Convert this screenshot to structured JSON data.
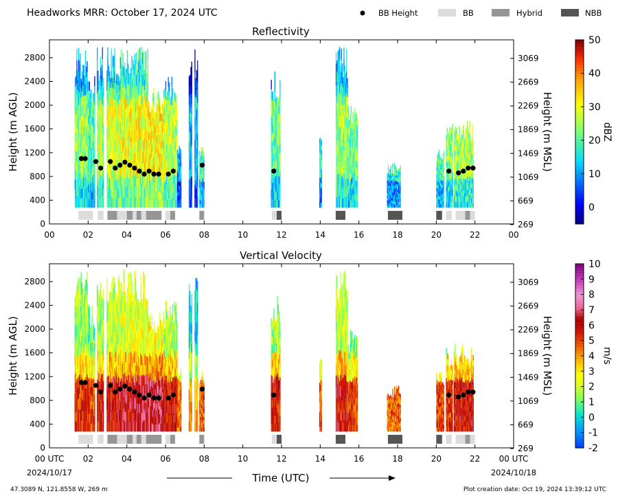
{
  "header": {
    "title": "Headworks MRR:  October 17, 2024 UTC",
    "legend": [
      {
        "label": "BB Height",
        "symbol": "dot",
        "color": "#000000"
      },
      {
        "label": "BB",
        "symbol": "box",
        "color": "#dcdcdc"
      },
      {
        "label": "Hybrid",
        "symbol": "box",
        "color": "#969696"
      },
      {
        "label": "NBB",
        "symbol": "box",
        "color": "#555555"
      }
    ]
  },
  "footer": {
    "location": "47.3089 N, 121.8558 W, 269 m",
    "creation": "Plot creation date: Oct 19, 2024 13:39:12 UTC",
    "xlabel": "Time (UTC)",
    "start_date": "2024/10/17",
    "end_date": "2024/10/18"
  },
  "chart_data": [
    {
      "type": "heatmap",
      "title": "Reflectivity",
      "ylabel": "Height (m AGL)",
      "ylabel_right": "Height (m MSL)",
      "colorbar_label": "dBZ",
      "xlim": [
        0,
        24
      ],
      "ylim": [
        0,
        3100
      ],
      "x_ticks": [
        "00",
        "02",
        "04",
        "06",
        "08",
        "10",
        "12",
        "14",
        "16",
        "18",
        "20",
        "22",
        "00"
      ],
      "y_ticks": [
        0,
        400,
        800,
        1200,
        1600,
        2000,
        2400,
        2800
      ],
      "y_ticks_right": [
        "269",
        "669",
        "1069",
        "1469",
        "1869",
        "2269",
        "2669",
        "3069"
      ],
      "colorbar_ticks": [
        "0",
        "10",
        "20",
        "30",
        "40",
        "50"
      ],
      "colorbar_range": [
        -5,
        50
      ]
    },
    {
      "type": "heatmap",
      "title": "Vertical Velocity",
      "ylabel": "Height (m AGL)",
      "ylabel_right": "Height (m MSL)",
      "colorbar_label": "m/s",
      "xlim": [
        0,
        24
      ],
      "ylim": [
        0,
        3100
      ],
      "x_ticks": [
        "00 UTC",
        "02",
        "04",
        "06",
        "08",
        "10",
        "12",
        "14",
        "16",
        "18",
        "20",
        "22",
        "00 UTC"
      ],
      "y_ticks": [
        0,
        400,
        800,
        1200,
        1600,
        2000,
        2400,
        2800
      ],
      "y_ticks_right": [
        "269",
        "669",
        "1069",
        "1469",
        "1869",
        "2269",
        "2669",
        "3069"
      ],
      "colorbar_ticks": [
        "-2",
        "-1",
        "0",
        "1",
        "2",
        "3",
        "4",
        "5",
        "6",
        "7",
        "8",
        "9",
        "10"
      ],
      "colorbar_range": [
        -2,
        10
      ]
    }
  ],
  "bb_height": [
    {
      "t": 1.65,
      "h": 1100
    },
    {
      "t": 1.85,
      "h": 1100
    },
    {
      "t": 2.4,
      "h": 1050
    },
    {
      "t": 2.65,
      "h": 940
    },
    {
      "t": 3.15,
      "h": 1050
    },
    {
      "t": 3.4,
      "h": 940
    },
    {
      "t": 3.65,
      "h": 990
    },
    {
      "t": 3.9,
      "h": 1040
    },
    {
      "t": 4.15,
      "h": 990
    },
    {
      "t": 4.4,
      "h": 940
    },
    {
      "t": 4.65,
      "h": 890
    },
    {
      "t": 4.9,
      "h": 840
    },
    {
      "t": 5.15,
      "h": 890
    },
    {
      "t": 5.4,
      "h": 840
    },
    {
      "t": 5.65,
      "h": 840
    },
    {
      "t": 6.15,
      "h": 840
    },
    {
      "t": 6.4,
      "h": 890
    },
    {
      "t": 7.9,
      "h": 990
    },
    {
      "t": 11.6,
      "h": 890
    },
    {
      "t": 20.65,
      "h": 890
    },
    {
      "t": 21.15,
      "h": 860
    },
    {
      "t": 21.4,
      "h": 890
    },
    {
      "t": 21.65,
      "h": 940
    },
    {
      "t": 21.9,
      "h": 940
    }
  ],
  "bb_type": [
    {
      "start": 1.5,
      "end": 2.25,
      "kind": "BB"
    },
    {
      "start": 2.5,
      "end": 2.8,
      "kind": "BB"
    },
    {
      "start": 3.0,
      "end": 3.5,
      "kind": "Hybrid"
    },
    {
      "start": 3.5,
      "end": 4.0,
      "kind": "BB"
    },
    {
      "start": 4.0,
      "end": 4.3,
      "kind": "Hybrid"
    },
    {
      "start": 4.3,
      "end": 4.5,
      "kind": "BB"
    },
    {
      "start": 4.5,
      "end": 4.75,
      "kind": "Hybrid"
    },
    {
      "start": 4.75,
      "end": 5.0,
      "kind": "BB"
    },
    {
      "start": 5.0,
      "end": 5.8,
      "kind": "Hybrid"
    },
    {
      "start": 6.0,
      "end": 6.25,
      "kind": "BB"
    },
    {
      "start": 6.25,
      "end": 6.5,
      "kind": "Hybrid"
    },
    {
      "start": 7.75,
      "end": 8.0,
      "kind": "Hybrid"
    },
    {
      "start": 11.5,
      "end": 11.75,
      "kind": "BB"
    },
    {
      "start": 11.75,
      "end": 12.0,
      "kind": "NBB"
    },
    {
      "start": 14.8,
      "end": 15.3,
      "kind": "NBB"
    },
    {
      "start": 17.5,
      "end": 18.25,
      "kind": "NBB"
    },
    {
      "start": 20.0,
      "end": 20.3,
      "kind": "NBB"
    },
    {
      "start": 20.5,
      "end": 20.8,
      "kind": "BB"
    },
    {
      "start": 21.0,
      "end": 21.5,
      "kind": "BB"
    },
    {
      "start": 21.5,
      "end": 21.75,
      "kind": "Hybrid"
    },
    {
      "start": 21.75,
      "end": 22.0,
      "kind": "BB"
    }
  ],
  "precip_columns": [
    {
      "start": 1.3,
      "end": 2.0,
      "top": 3000,
      "refl": 16,
      "vel": 2.2
    },
    {
      "start": 2.0,
      "end": 2.35,
      "top": 2500,
      "refl": 12,
      "vel": 1.8
    },
    {
      "start": 2.45,
      "end": 2.8,
      "top": 3000,
      "refl": 18,
      "vel": 2.5
    },
    {
      "start": 2.95,
      "end": 3.6,
      "top": 3000,
      "refl": 20,
      "vel": 2.8
    },
    {
      "start": 3.6,
      "end": 4.3,
      "top": 3000,
      "refl": 22,
      "vel": 3.0
    },
    {
      "start": 4.3,
      "end": 5.1,
      "top": 3000,
      "refl": 23,
      "vel": 3.2
    },
    {
      "start": 5.1,
      "end": 5.9,
      "top": 2300,
      "refl": 24,
      "vel": 3.4
    },
    {
      "start": 5.9,
      "end": 6.6,
      "top": 2500,
      "refl": 19,
      "vel": 2.6
    },
    {
      "start": 6.6,
      "end": 6.8,
      "top": 1400,
      "refl": 3,
      "vel": 1.2
    },
    {
      "start": 7.2,
      "end": 7.35,
      "top": 2900,
      "refl": 4,
      "vel": 0.8
    },
    {
      "start": 7.5,
      "end": 7.65,
      "top": 3000,
      "refl": 5,
      "vel": 0.6
    },
    {
      "start": 7.75,
      "end": 8.0,
      "top": 1300,
      "refl": 12,
      "vel": 1.6
    },
    {
      "start": 11.45,
      "end": 11.9,
      "top": 2600,
      "refl": 13,
      "vel": 2.4
    },
    {
      "start": 13.95,
      "end": 14.05,
      "top": 1650,
      "refl": 8,
      "vel": 1.5
    },
    {
      "start": 14.8,
      "end": 15.4,
      "top": 3000,
      "refl": 17,
      "vel": 2.8
    },
    {
      "start": 15.4,
      "end": 15.9,
      "top": 2000,
      "refl": 14,
      "vel": 1.9
    },
    {
      "start": 17.45,
      "end": 18.15,
      "top": 1050,
      "refl": 9,
      "vel": 1.4
    },
    {
      "start": 20.0,
      "end": 20.4,
      "top": 1300,
      "refl": 12,
      "vel": 2.0
    },
    {
      "start": 20.5,
      "end": 20.85,
      "top": 1700,
      "refl": 14,
      "vel": 2.1
    },
    {
      "start": 20.9,
      "end": 21.9,
      "top": 1750,
      "refl": 17,
      "vel": 2.6
    }
  ]
}
